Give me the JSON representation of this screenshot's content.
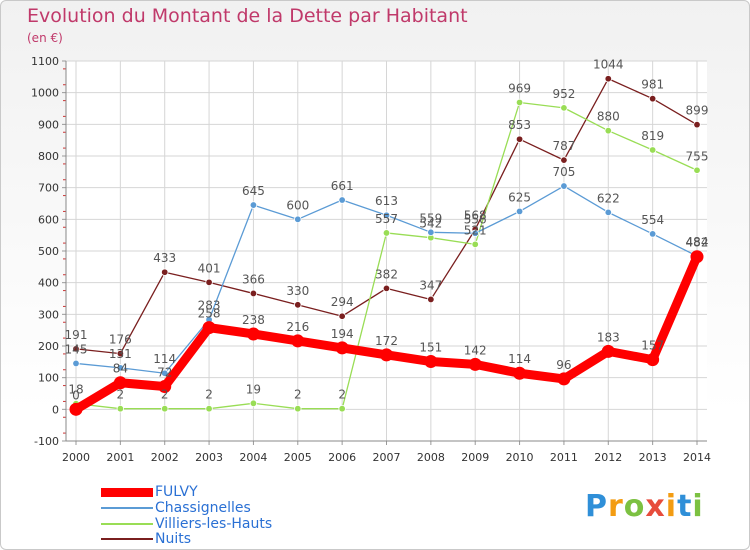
{
  "chart_data": {
    "type": "line",
    "title": "Evolution du Montant de la Dette par Habitant",
    "subtitle": "(en €)",
    "x": [
      "2000",
      "2001",
      "2002",
      "2003",
      "2004",
      "2005",
      "2006",
      "2007",
      "2008",
      "2009",
      "2010",
      "2011",
      "2012",
      "2013",
      "2014"
    ],
    "ylim": [
      -100,
      1100
    ],
    "yticks": [
      -100,
      0,
      100,
      200,
      300,
      400,
      500,
      600,
      700,
      800,
      900,
      1000,
      1100
    ],
    "grid": true,
    "legend_position": "bottom-left",
    "series": [
      {
        "name": "FULVY",
        "color": "#ff0000",
        "values": [
          0,
          84,
          72,
          258,
          238,
          216,
          194,
          172,
          151,
          142,
          114,
          96,
          183,
          157,
          482
        ],
        "labels": [
          "0",
          "84",
          "72",
          "258",
          "238",
          "216",
          "194",
          "172",
          "151",
          "142",
          "114",
          "96",
          "183",
          "157",
          "482"
        ]
      },
      {
        "name": "Chassignelles",
        "color": "#5b9bd5",
        "values": [
          145,
          131,
          114,
          283,
          645,
          600,
          661,
          613,
          559,
          556,
          625,
          705,
          622,
          554,
          484
        ],
        "labels": [
          "145",
          "131",
          "114",
          "283",
          "645",
          "600",
          "661",
          "613",
          "559",
          "556",
          "625",
          "705",
          "622",
          "554",
          "484"
        ]
      },
      {
        "name": "Villiers-les-Hauts",
        "color": "#99dd55",
        "values": [
          18,
          2,
          2,
          2,
          19,
          2,
          2,
          557,
          542,
          521,
          969,
          952,
          880,
          819,
          755
        ],
        "labels": [
          "18",
          "2",
          "2",
          "2",
          "19",
          "2",
          "2",
          "557",
          "542",
          "521",
          "969",
          "952",
          "880",
          "819",
          "755"
        ]
      },
      {
        "name": "Nuits",
        "color": "#7a1f1f",
        "values": [
          191,
          176,
          433,
          401,
          366,
          330,
          294,
          382,
          347,
          568,
          853,
          787,
          1044,
          981,
          899
        ],
        "labels": [
          "191",
          "176",
          "433",
          "401",
          "366",
          "330",
          "294",
          "382",
          "347",
          "568",
          "853",
          "787",
          "1044",
          "981",
          "899"
        ]
      }
    ]
  },
  "legend": {
    "items": [
      {
        "label": "FULVY",
        "color": "#ff0000"
      },
      {
        "label": "Chassignelles",
        "color": "#5b9bd5"
      },
      {
        "label": "Villiers-les-Hauts",
        "color": "#99dd55"
      },
      {
        "label": "Nuits",
        "color": "#7a1f1f"
      }
    ]
  },
  "logo": {
    "text": "Proxiti"
  }
}
